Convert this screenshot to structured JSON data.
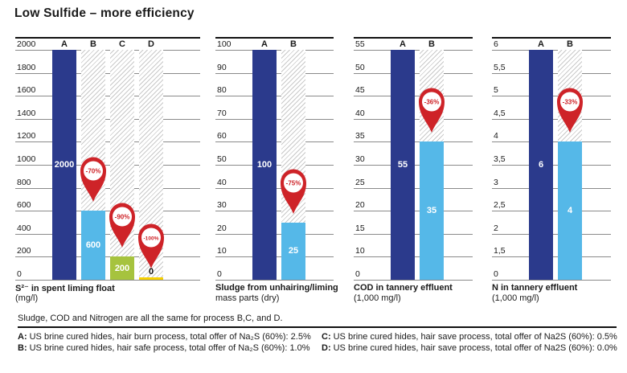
{
  "title": "Low Sulfide – more efficiency",
  "colors": {
    "navy": "#2b3a8c",
    "light_blue": "#55b8e8",
    "green": "#a6c33e",
    "yellow": "#f6d000",
    "red": "#ce2328",
    "grid": "#8a8a8a",
    "hatch": "#c9c9c9",
    "ink": "#1a1a1a"
  },
  "chart_data": [
    {
      "type": "bar",
      "title": "S²⁻ in spent liming float",
      "subtitle": "(mg/l)",
      "ytick_labels": [
        "2000",
        "1800",
        "1600",
        "1400",
        "1200",
        "1000",
        "800",
        "600",
        "400",
        "200",
        "0"
      ],
      "ytick_values": [
        2000,
        1800,
        1600,
        1400,
        1200,
        1000,
        800,
        600,
        400,
        200,
        0
      ],
      "categories": [
        "A",
        "B",
        "C",
        "D"
      ],
      "bars": [
        {
          "category": "A",
          "value": 2000,
          "label": "2000",
          "color": "navy",
          "hatch": false,
          "reduction": null,
          "label_dark": false
        },
        {
          "category": "B",
          "value": 600,
          "label": "600",
          "color": "light_blue",
          "hatch": true,
          "reduction": "-70%",
          "label_dark": false
        },
        {
          "category": "C",
          "value": 200,
          "label": "200",
          "color": "green",
          "hatch": true,
          "reduction": "-90%",
          "label_dark": false
        },
        {
          "category": "D",
          "value": 0,
          "label": "0",
          "color": "yellow",
          "hatch": true,
          "reduction": "-100%",
          "label_dark": true
        }
      ]
    },
    {
      "type": "bar",
      "title": "Sludge from unhairing/liming",
      "subtitle": "mass parts (dry)",
      "ytick_labels": [
        "100",
        "90",
        "80",
        "70",
        "60",
        "50",
        "40",
        "30",
        "20",
        "10",
        "0"
      ],
      "ytick_values": [
        100,
        90,
        80,
        70,
        60,
        50,
        40,
        30,
        20,
        10,
        0
      ],
      "categories": [
        "A",
        "B"
      ],
      "bars": [
        {
          "category": "A",
          "value": 100,
          "label": "100",
          "color": "navy",
          "hatch": false,
          "reduction": null,
          "label_dark": false
        },
        {
          "category": "B",
          "value": 25,
          "label": "25",
          "color": "light_blue",
          "hatch": true,
          "reduction": "-75%",
          "label_dark": false
        }
      ]
    },
    {
      "type": "bar",
      "title": "COD in tannery effluent",
      "subtitle": "(1,000 mg/l)",
      "ytick_labels": [
        "55",
        "50",
        "45",
        "40",
        "35",
        "30",
        "25",
        "20",
        "15",
        "10",
        "0"
      ],
      "ytick_values": [
        55,
        50,
        45,
        40,
        35,
        30,
        25,
        20,
        15,
        10,
        0
      ],
      "categories": [
        "A",
        "B"
      ],
      "bars": [
        {
          "category": "A",
          "value": 55,
          "label": "55",
          "color": "navy",
          "hatch": false,
          "reduction": null,
          "label_dark": false
        },
        {
          "category": "B",
          "value": 35,
          "label": "35",
          "color": "light_blue",
          "hatch": true,
          "reduction": "-36%",
          "label_dark": false
        }
      ]
    },
    {
      "type": "bar",
      "title": "N in tannery effluent",
      "subtitle": "(1,000 mg/l)",
      "ytick_labels": [
        "6",
        "5,5",
        "5",
        "4,5",
        "4",
        "3,5",
        "3",
        "2,5",
        "2",
        "1,5",
        "0"
      ],
      "ytick_values": [
        6,
        5.5,
        5,
        4.5,
        4,
        3.5,
        3,
        2.5,
        2,
        1.5,
        0
      ],
      "categories": [
        "A",
        "B"
      ],
      "bars": [
        {
          "category": "A",
          "value": 6,
          "label": "6",
          "color": "navy",
          "hatch": false,
          "reduction": null,
          "label_dark": false
        },
        {
          "category": "B",
          "value": 4,
          "label": "4",
          "color": "light_blue",
          "hatch": true,
          "reduction": "-33%",
          "label_dark": false
        }
      ]
    }
  ],
  "footer": {
    "note": "Sludge, COD and Nitrogen are all the same for process B,C, and D.",
    "legend_left": [
      {
        "key": "A:",
        "text": "US brine cured hides, hair burn process, total offer of Na₂S (60%): 2.5%"
      },
      {
        "key": "B:",
        "text": "US brine cured hides, hair safe process, total offer of Na₂S (60%): 1.0%"
      }
    ],
    "legend_right": [
      {
        "key": "C:",
        "text": "US brine cured hides, hair save process, total offer of Na2S (60%): 0.5%"
      },
      {
        "key": "D:",
        "text": "US brine cured hides, hair save process, total offer of Na2S (60%): 0.0%"
      }
    ]
  }
}
